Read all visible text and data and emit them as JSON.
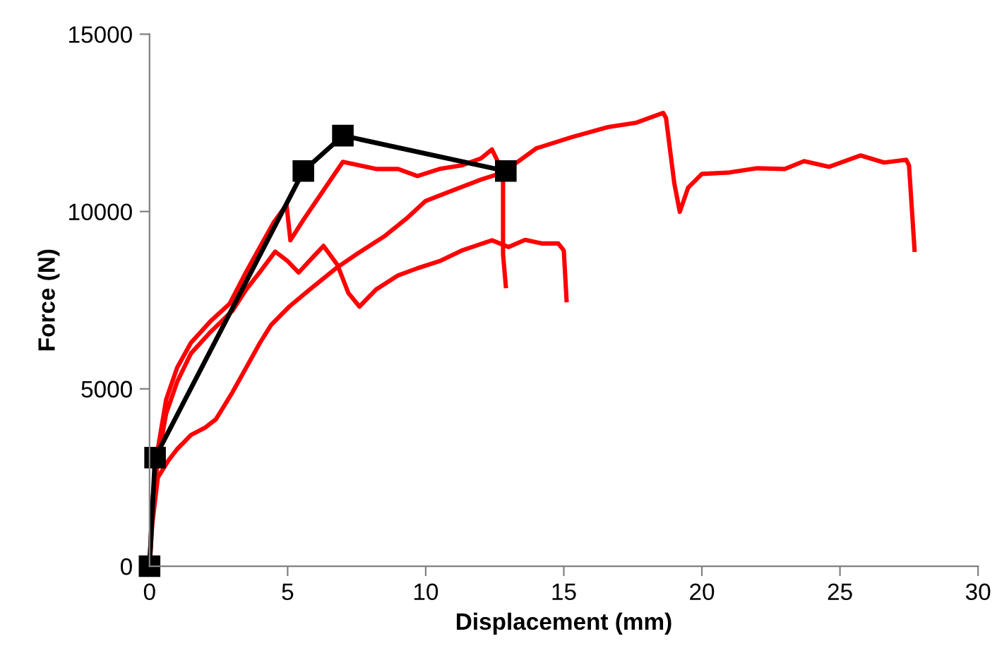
{
  "chart_data": {
    "type": "line",
    "xlabel": "Displacement (mm)",
    "ylabel": "Force (N)",
    "xlim": [
      0,
      30
    ],
    "xticks": [
      0,
      5,
      10,
      15,
      20,
      25,
      30
    ],
    "ylim": [
      0,
      15000
    ],
    "yticks": [
      0,
      5000,
      10000,
      15000
    ],
    "grid": false,
    "series": [
      {
        "color": "#ff0000",
        "marker": "none",
        "x": [
          0,
          0.1,
          0.3,
          0.6,
          1.0,
          1.5,
          2.2,
          2.9,
          3.5,
          4.0,
          4.5,
          4.96,
          5.1,
          5.6,
          6.3,
          7.0,
          7.6,
          8.2,
          9.0,
          9.7,
          10.5,
          11.3,
          12.0,
          12.4,
          12.8,
          12.8,
          12.9
        ],
        "values": [
          0,
          1800,
          3300,
          4700,
          5600,
          6300,
          6900,
          7400,
          8300,
          9000,
          9700,
          10190,
          9190,
          9800,
          10600,
          11400,
          11300,
          11200,
          11200,
          11000,
          11200,
          11300,
          11500,
          11750,
          11100,
          8800,
          7900
        ]
      },
      {
        "color": "#ff0000",
        "marker": "none",
        "x": [
          0,
          0.1,
          0.3,
          0.6,
          1.0,
          1.5,
          2.2,
          3.0,
          3.5,
          4.0,
          4.55,
          5.0,
          5.4,
          5.9,
          6.3,
          6.8,
          7.2,
          7.6,
          8.2,
          9.0,
          9.7,
          10.5,
          11.3,
          12.4,
          13.0,
          13.6,
          14.2,
          14.8,
          15.0,
          15.1
        ],
        "values": [
          0,
          1600,
          3000,
          4300,
          5200,
          6000,
          6600,
          7200,
          7800,
          8300,
          8870,
          8600,
          8280,
          8700,
          9030,
          8500,
          7700,
          7320,
          7800,
          8200,
          8400,
          8600,
          8900,
          9190,
          9000,
          9200,
          9100,
          9100,
          8900,
          7500
        ]
      },
      {
        "color": "#ff0000",
        "marker": "none",
        "x": [
          0,
          0.1,
          0.3,
          0.7,
          1.0,
          1.5,
          2.0,
          2.4,
          3.0,
          3.5,
          4.0,
          4.4,
          5.06,
          5.8,
          6.75,
          7.5,
          8.5,
          9.3,
          10.0,
          11.0,
          12.0,
          12.8,
          14.0,
          15.3,
          16.6,
          17.6,
          18.6,
          18.7,
          19.0,
          19.2,
          19.5,
          20.0,
          21.0,
          22.0,
          23.0,
          23.7,
          24.6,
          25.75,
          26.6,
          27.4,
          27.5,
          27.7
        ],
        "values": [
          0,
          1200,
          2500,
          3000,
          3300,
          3700,
          3900,
          4140,
          4900,
          5600,
          6300,
          6800,
          7320,
          7800,
          8400,
          8800,
          9300,
          9800,
          10300,
          10600,
          10900,
          11100,
          11780,
          12100,
          12380,
          12500,
          12780,
          12640,
          10800,
          9990,
          10670,
          11060,
          11100,
          11220,
          11200,
          11420,
          11260,
          11580,
          11380,
          11460,
          11300,
          8920
        ]
      },
      {
        "color": "#000000",
        "marker": "square",
        "x": [
          0,
          0.2,
          5.57,
          7.0,
          12.9
        ],
        "values": [
          0,
          3060,
          11140,
          12140,
          11140
        ]
      }
    ]
  }
}
